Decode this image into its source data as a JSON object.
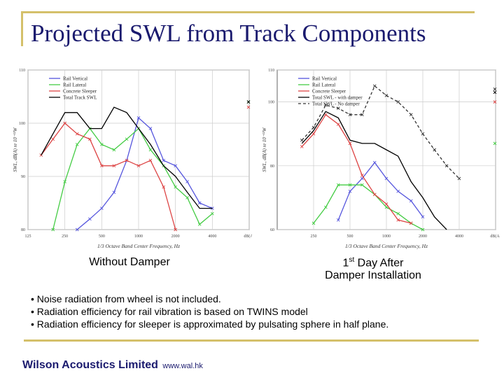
{
  "slide": {
    "title": "Projected SWL from Track Components",
    "caption_left": "Without Damper",
    "caption_right_pre": "1",
    "caption_right_sup": "st",
    "caption_right_post": " Day After",
    "caption_right_line2": "Damper Installation",
    "notes": [
      "• Noise radiation from wheel is not included.",
      "• Radiation efficiency for rail vibration is based on TWINS model",
      "• Radiation efficiency for sleeper is approximated by pulsating sphere in half plane."
    ],
    "footer_company": "Wilson Acoustics Limited",
    "footer_url": "www.wal.hk",
    "colors": {
      "title": "#1a1a6e",
      "accent_line": "#d4c06a"
    }
  },
  "chart_data": [
    {
      "type": "line",
      "xlabel": "1/3 Octave Band Center Frequency, Hz",
      "ylabel": "SWL, dB(A) re 10⁻¹²W",
      "xscale": "log",
      "xlim": [
        125,
        8000
      ],
      "ylim": [
        80,
        110
      ],
      "x_ticks": [
        125,
        250,
        500,
        1000,
        2000,
        4000,
        8000
      ],
      "x_tick_labels": [
        "125",
        "250",
        "500",
        "1000",
        "2000",
        "4000",
        "dB(A)"
      ],
      "y_ticks": [
        80,
        90,
        100,
        110
      ],
      "y_tick_labels": [
        "80",
        "90",
        "100",
        "110"
      ],
      "grid": true,
      "legend": "top-left",
      "series": [
        {
          "name": "Rail Vertical",
          "color": "#5555dd",
          "dash": "",
          "marker": "x",
          "x": [
            315,
            400,
            500,
            630,
            800,
            1000,
            1250,
            1600,
            2000,
            2500,
            3150,
            4000
          ],
          "y": [
            80,
            82,
            84,
            87,
            93,
            101,
            99,
            93,
            92,
            89,
            85,
            84
          ]
        },
        {
          "name": "Rail Lateral",
          "color": "#44cc44",
          "dash": "",
          "marker": "x",
          "x": [
            200,
            250,
            315,
            400,
            500,
            630,
            800,
            1000,
            1250,
            1600,
            2000,
            2500,
            3150,
            4000
          ],
          "y": [
            80,
            89,
            96,
            99,
            96,
            95,
            97,
            99,
            95,
            92,
            88,
            86,
            81,
            83
          ],
          "end_value": 104
        },
        {
          "name": "Concrete Sleeper",
          "color": "#dd4444",
          "dash": "",
          "marker": "x",
          "x": [
            160,
            200,
            250,
            315,
            400,
            500,
            630,
            800,
            1000,
            1250,
            1600,
            2000
          ],
          "y": [
            94,
            97,
            100,
            98,
            97,
            92,
            92,
            93,
            92,
            93,
            88,
            80
          ],
          "end_value": 103
        },
        {
          "name": "Total Track SWL",
          "color": "#000000",
          "dash": "",
          "marker": "none",
          "x": [
            160,
            200,
            250,
            315,
            400,
            500,
            630,
            800,
            1000,
            1250,
            1600,
            2000,
            2500,
            3150,
            4000
          ],
          "y": [
            94,
            98,
            102,
            102,
            99,
            99,
            103,
            102,
            99,
            96,
            92,
            90,
            87,
            84,
            84
          ],
          "end_value": 104
        }
      ]
    },
    {
      "type": "line",
      "xlabel": "1/3 Octave Band Center Frequency, Hz",
      "ylabel": "SWL, dB(A) re 10⁻¹²W",
      "xscale": "log",
      "xlim": [
        125,
        8000
      ],
      "ylim": [
        60,
        110
      ],
      "x_ticks": [
        250,
        500,
        1000,
        2000,
        4000,
        8000
      ],
      "x_tick_labels": [
        "250",
        "500",
        "1000",
        "2000",
        "4000",
        "dB(A)"
      ],
      "y_ticks": [
        60,
        80,
        100,
        110
      ],
      "y_tick_labels": [
        "60",
        "80",
        "100",
        "110"
      ],
      "grid": true,
      "legend": "top-left",
      "series": [
        {
          "name": "Rail Vertical",
          "color": "#5555dd",
          "dash": "",
          "marker": "x",
          "x": [
            400,
            500,
            630,
            800,
            1000,
            1250,
            1600,
            2000
          ],
          "y": [
            63,
            72,
            76,
            81,
            76,
            72,
            69,
            64
          ]
        },
        {
          "name": "Rail Lateral",
          "color": "#44cc44",
          "dash": "",
          "marker": "x",
          "x": [
            250,
            315,
            400,
            500,
            630,
            800,
            1000,
            1250,
            1600,
            2000
          ],
          "y": [
            62,
            67,
            74,
            74,
            74,
            71,
            67,
            65,
            62,
            60
          ],
          "end_value": 87
        },
        {
          "name": "Concrete Sleeper",
          "color": "#dd4444",
          "dash": "",
          "marker": "x",
          "x": [
            200,
            250,
            315,
            400,
            500,
            630,
            800,
            1000,
            1250,
            1600
          ],
          "y": [
            86,
            90,
            96,
            93,
            87,
            77,
            71,
            68,
            63,
            62
          ],
          "end_value": 100
        },
        {
          "name": "Total SWL - with damper",
          "color": "#000000",
          "dash": "",
          "marker": "none",
          "x": [
            200,
            250,
            315,
            400,
            500,
            630,
            800,
            1000,
            1250,
            1600,
            2000,
            2500,
            3150
          ],
          "y": [
            87,
            91,
            97,
            95,
            88,
            87,
            87,
            85,
            83,
            75,
            70,
            64,
            60
          ],
          "end_value": 103
        },
        {
          "name": "Total SWL - No damper",
          "color": "#333333",
          "dash": "4,3",
          "marker": "x",
          "x": [
            200,
            250,
            315,
            400,
            500,
            630,
            800,
            1000,
            1250,
            1600,
            2000,
            2500,
            3150,
            4000
          ],
          "y": [
            88,
            92,
            99,
            98,
            96,
            96,
            105,
            102,
            100,
            96,
            90,
            85,
            80,
            76
          ],
          "end_value": 104
        }
      ]
    }
  ]
}
